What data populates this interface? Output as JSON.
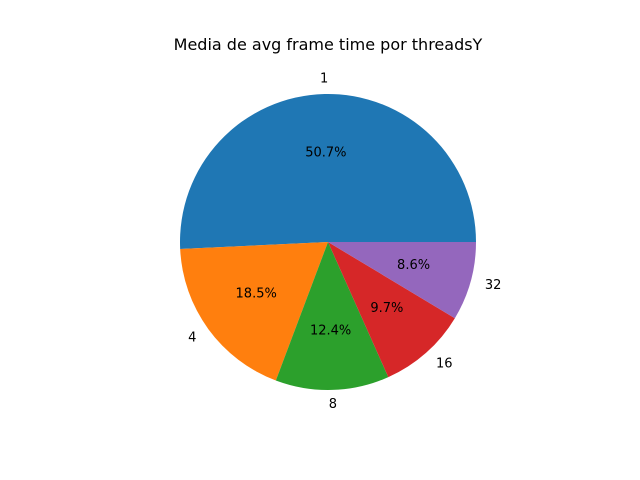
{
  "chart_data": {
    "type": "pie",
    "title": "Media de avg frame time por threadsY",
    "start_angle": 0,
    "direction": "counterclockwise",
    "slices": [
      {
        "label": "1",
        "value": 50.7,
        "pct_label": "50.7%",
        "color": "#1f77b4"
      },
      {
        "label": "4",
        "value": 18.5,
        "pct_label": "18.5%",
        "color": "#ff7f0e"
      },
      {
        "label": "8",
        "value": 12.4,
        "pct_label": "12.4%",
        "color": "#2ca02c"
      },
      {
        "label": "16",
        "value": 9.7,
        "pct_label": "9.7%",
        "color": "#d62728"
      },
      {
        "label": "32",
        "value": 8.6,
        "pct_label": "8.6%",
        "color": "#9467bd"
      }
    ]
  }
}
